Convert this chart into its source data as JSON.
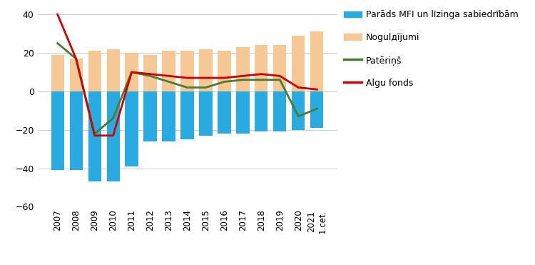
{
  "categories": [
    "2007",
    "2008",
    "2009",
    "2010",
    "2011",
    "2012",
    "2013",
    "2014",
    "2015",
    "2016",
    "2017",
    "2018",
    "2019",
    "2020",
    "2021\n1.cet."
  ],
  "debt_mfi": [
    -41,
    -41,
    -47,
    -47,
    -39,
    -26,
    -26,
    -25,
    -23,
    -22,
    -22,
    -21,
    -21,
    -20,
    -19
  ],
  "deposits": [
    19,
    17,
    21,
    22,
    20,
    19,
    21,
    21,
    22,
    21,
    23,
    24,
    24,
    29,
    31
  ],
  "paterins": [
    25,
    17,
    -22,
    -14,
    10,
    8,
    5,
    2,
    2,
    5,
    6,
    6,
    6,
    -13,
    -9
  ],
  "algu_fonds": [
    40,
    17,
    -23,
    -23,
    10,
    9,
    8,
    7,
    7,
    7,
    8,
    9,
    8,
    2,
    1
  ],
  "color_debt": "#29ABE2",
  "color_deposits": "#F5C896",
  "color_paterins": "#4A7C2F",
  "color_algu": "#CC0000",
  "ylim": [
    -60,
    40
  ],
  "yticks": [
    -60,
    -40,
    -20,
    0,
    20,
    40
  ],
  "legend_debt": "Parāds MFI un līzinga sabiedrībām",
  "legend_deposits": "Nogulдījumi",
  "legend_paterins": "Patēriņš",
  "legend_algu": "Algu fonds"
}
